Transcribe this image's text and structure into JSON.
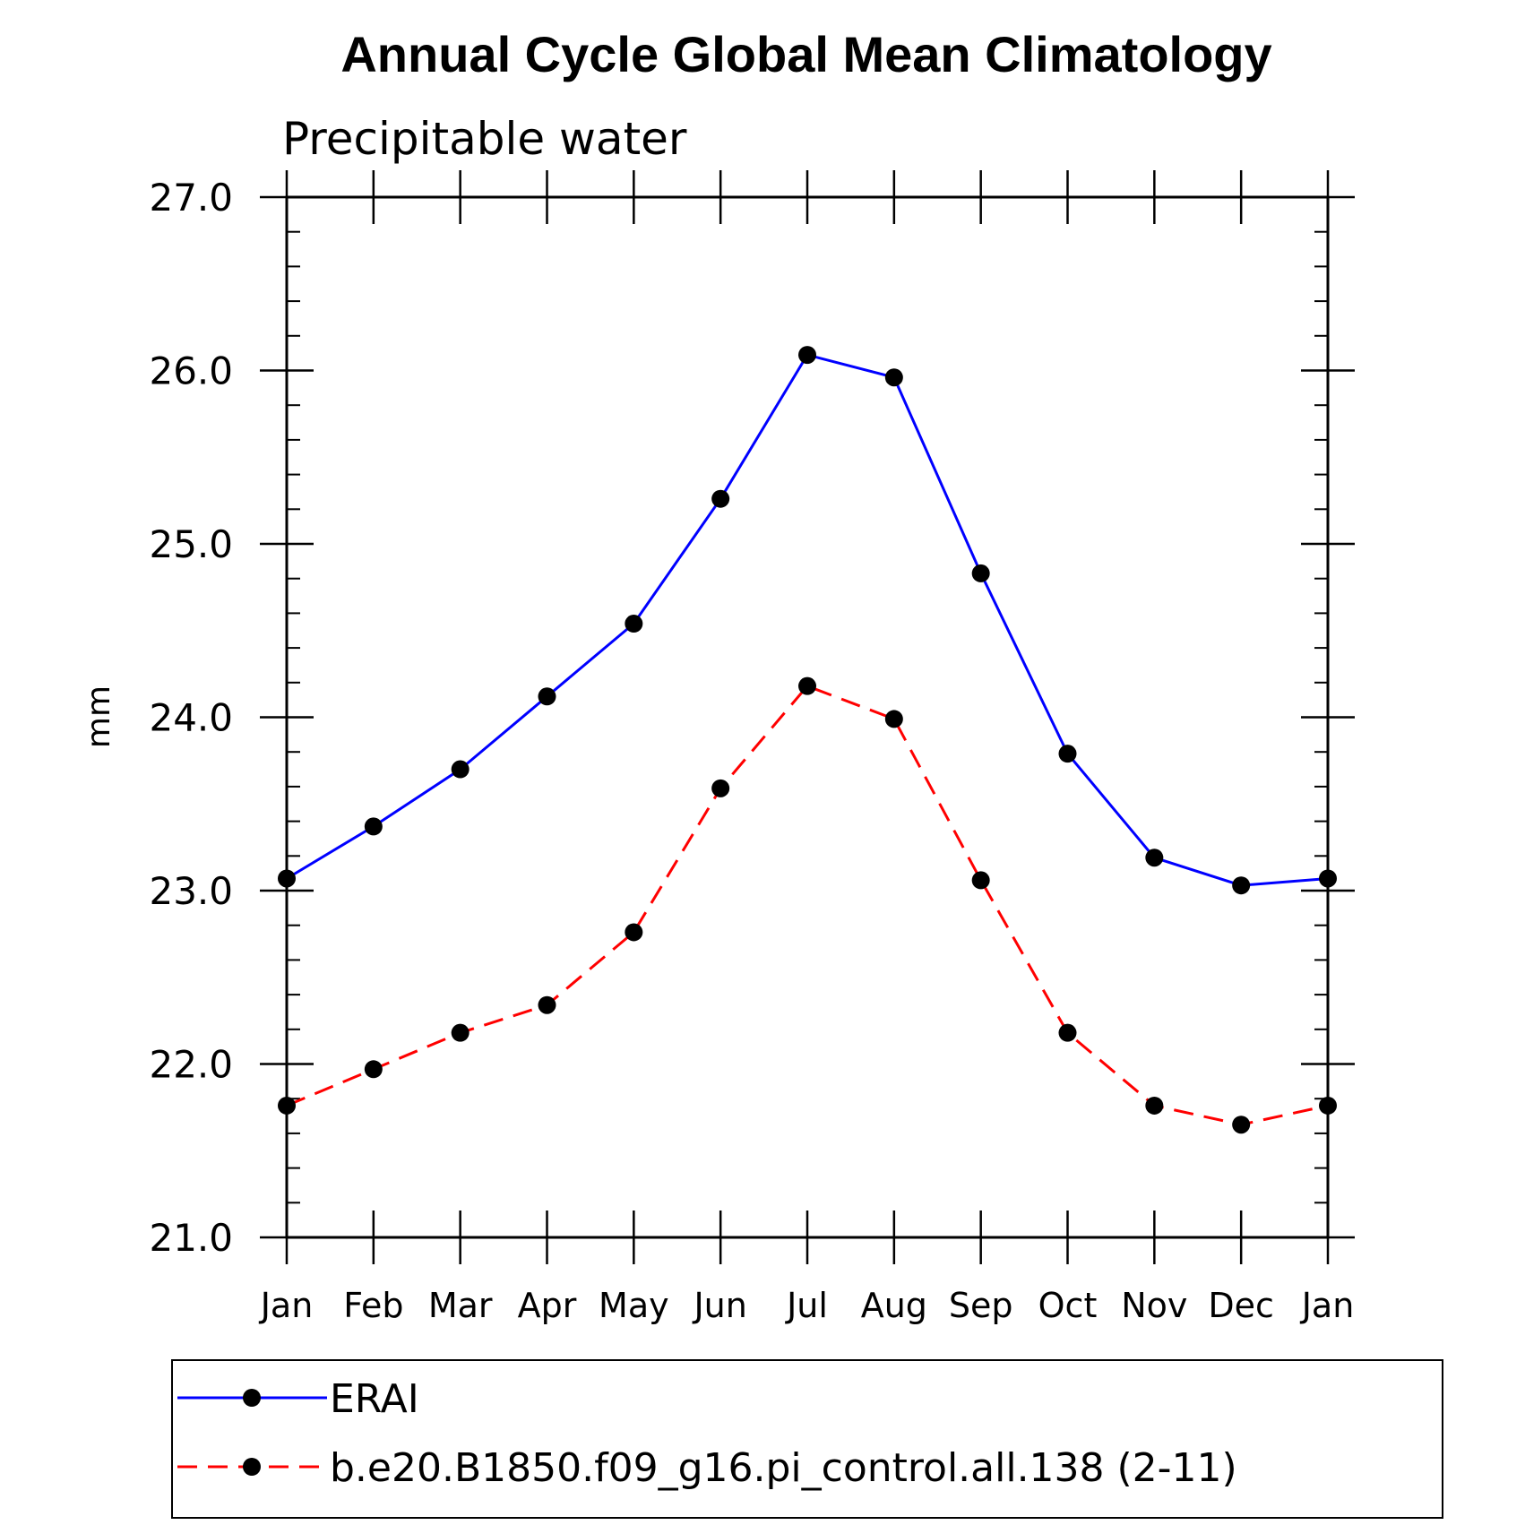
{
  "chart_data": {
    "type": "line",
    "title": "Annual Cycle Global Mean Climatology",
    "subtitle": "Precipitable water",
    "xlabel": "",
    "ylabel": "mm",
    "categories": [
      "Jan",
      "Feb",
      "Mar",
      "Apr",
      "May",
      "Jun",
      "Jul",
      "Aug",
      "Sep",
      "Oct",
      "Nov",
      "Dec",
      "Jan"
    ],
    "ylim": [
      21.0,
      27.0
    ],
    "yticks": [
      21.0,
      22.0,
      23.0,
      24.0,
      25.0,
      26.0,
      27.0
    ],
    "ytick_labels": [
      "21.0",
      "22.0",
      "23.0",
      "24.0",
      "25.0",
      "26.0",
      "27.0"
    ],
    "y_minor_step": 0.2,
    "grid": false,
    "legend_position": "bottom",
    "series": [
      {
        "name": "ERAI",
        "color": "#0000ff",
        "line_style": "solid",
        "marker": "filled-circle",
        "values": [
          23.07,
          23.37,
          23.7,
          24.12,
          24.54,
          25.26,
          26.09,
          25.96,
          24.83,
          23.79,
          23.19,
          23.03,
          23.07
        ]
      },
      {
        "name": "b.e20.B1850.f09_g16.pi_control.all.138 (2-11)",
        "color": "#ff0000",
        "line_style": "dashed",
        "marker": "filled-circle",
        "values": [
          21.76,
          21.97,
          22.18,
          22.34,
          22.76,
          23.59,
          24.18,
          23.99,
          23.06,
          22.18,
          21.76,
          21.65,
          21.76
        ]
      }
    ]
  }
}
